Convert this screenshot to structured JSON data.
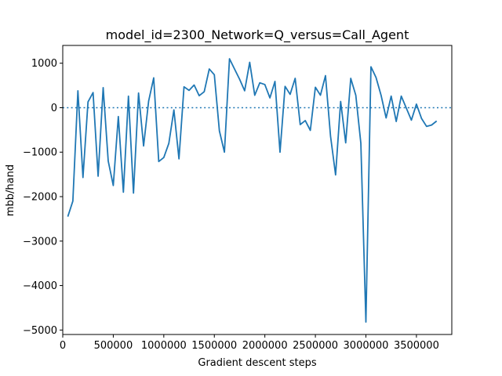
{
  "chart_data": {
    "type": "line",
    "title": "model_id=2300_Network=Q_versus=Call_Agent",
    "xlabel": "Gradient descent steps",
    "ylabel": "mbb/hand",
    "xlim": [
      0,
      3850000
    ],
    "ylim": [
      -5100,
      1400
    ],
    "x_ticks": [
      0,
      500000,
      1000000,
      1500000,
      2000000,
      2500000,
      3000000,
      3500000
    ],
    "x_tick_labels": [
      "0",
      "500000",
      "1000000",
      "1500000",
      "2000000",
      "2500000",
      "3000000",
      "3500000"
    ],
    "y_ticks": [
      -5000,
      -4000,
      -3000,
      -2000,
      -1000,
      0,
      1000
    ],
    "y_tick_labels": [
      "−5000",
      "−4000",
      "−3000",
      "−2000",
      "−1000",
      "0",
      "1000"
    ],
    "grid": false,
    "reference_line": {
      "y": 0,
      "style": "dotted"
    },
    "series": [
      {
        "color": "#1f77b4",
        "points": [
          [
            50000,
            -2450
          ],
          [
            100000,
            -2100
          ],
          [
            150000,
            380
          ],
          [
            200000,
            -1570
          ],
          [
            250000,
            130
          ],
          [
            300000,
            340
          ],
          [
            350000,
            -1540
          ],
          [
            400000,
            450
          ],
          [
            450000,
            -1200
          ],
          [
            500000,
            -1750
          ],
          [
            550000,
            -200
          ],
          [
            600000,
            -1900
          ],
          [
            650000,
            260
          ],
          [
            700000,
            -1920
          ],
          [
            750000,
            330
          ],
          [
            800000,
            -860
          ],
          [
            850000,
            150
          ],
          [
            900000,
            670
          ],
          [
            950000,
            -1210
          ],
          [
            1000000,
            -1120
          ],
          [
            1050000,
            -800
          ],
          [
            1100000,
            -50
          ],
          [
            1150000,
            -1150
          ],
          [
            1200000,
            470
          ],
          [
            1250000,
            390
          ],
          [
            1300000,
            510
          ],
          [
            1350000,
            270
          ],
          [
            1400000,
            360
          ],
          [
            1450000,
            870
          ],
          [
            1500000,
            740
          ],
          [
            1550000,
            -520
          ],
          [
            1600000,
            -1000
          ],
          [
            1650000,
            1100
          ],
          [
            1700000,
            870
          ],
          [
            1750000,
            640
          ],
          [
            1800000,
            380
          ],
          [
            1850000,
            1020
          ],
          [
            1900000,
            280
          ],
          [
            1950000,
            560
          ],
          [
            2000000,
            520
          ],
          [
            2050000,
            220
          ],
          [
            2100000,
            590
          ],
          [
            2150000,
            -1000
          ],
          [
            2200000,
            480
          ],
          [
            2250000,
            300
          ],
          [
            2300000,
            660
          ],
          [
            2350000,
            -380
          ],
          [
            2400000,
            -290
          ],
          [
            2450000,
            -510
          ],
          [
            2500000,
            460
          ],
          [
            2550000,
            280
          ],
          [
            2600000,
            720
          ],
          [
            2650000,
            -640
          ],
          [
            2700000,
            -1510
          ],
          [
            2750000,
            140
          ],
          [
            2800000,
            -790
          ],
          [
            2850000,
            660
          ],
          [
            2900000,
            280
          ],
          [
            2950000,
            -800
          ],
          [
            3000000,
            -4820
          ],
          [
            3050000,
            920
          ],
          [
            3100000,
            680
          ],
          [
            3150000,
            280
          ],
          [
            3200000,
            -230
          ],
          [
            3250000,
            260
          ],
          [
            3300000,
            -310
          ],
          [
            3350000,
            260
          ],
          [
            3400000,
            -10
          ],
          [
            3450000,
            -280
          ],
          [
            3500000,
            80
          ],
          [
            3550000,
            -240
          ],
          [
            3600000,
            -420
          ],
          [
            3650000,
            -390
          ],
          [
            3700000,
            -300
          ]
        ]
      }
    ]
  }
}
